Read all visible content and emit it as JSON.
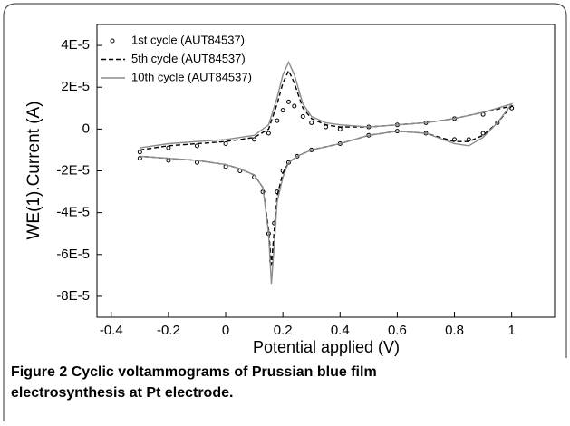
{
  "chart_data": {
    "type": "line",
    "x_label": "Potential applied (V)",
    "y_label": "WE(1).Current (A)",
    "x": [
      -0.3,
      -0.2,
      -0.1,
      0,
      0.1,
      0.15,
      0.18,
      0.2,
      0.22,
      0.24,
      0.27,
      0.3,
      0.35,
      0.4,
      0.5,
      0.6,
      0.7,
      0.8,
      0.9,
      1.0,
      0.95,
      0.9,
      0.85,
      0.8,
      0.7,
      0.6,
      0.5,
      0.4,
      0.3,
      0.25,
      0.22,
      0.2,
      0.18,
      0.17,
      0.16,
      0.15,
      0.13,
      0.1,
      0.05,
      0,
      -0.1,
      -0.2,
      -0.3
    ],
    "series": [
      {
        "name": "1st cycle (AUT84537)",
        "color": "#000000",
        "marker": "circle",
        "values": [
          -1.1e-05,
          -9e-06,
          -8e-06,
          -7e-06,
          -5e-06,
          -2e-06,
          4e-06,
          9e-06,
          1.3e-05,
          1.1e-05,
          6e-06,
          3e-06,
          1e-06,
          0.0,
          1e-06,
          2e-06,
          3e-06,
          5e-06,
          7e-06,
          1e-05,
          3e-06,
          -2e-06,
          -5e-06,
          -5e-06,
          -2e-06,
          -1e-06,
          -3e-06,
          -7e-06,
          -1e-05,
          -1.3e-05,
          -1.6e-05,
          -2e-05,
          -3e-05,
          -4.5e-05,
          -6.3e-05,
          -5e-05,
          -3e-05,
          -2.3e-05,
          -2e-05,
          -1.8e-05,
          -1.6e-05,
          -1.5e-05,
          -1.4e-05
        ]
      },
      {
        "name": "5th cycle (AUT84537)",
        "color": "#000000",
        "dash": true,
        "values": [
          -1e-05,
          -8e-06,
          -7e-06,
          -6e-06,
          -4e-06,
          0.0,
          1.2e-05,
          2.2e-05,
          2.8e-05,
          2.2e-05,
          1e-05,
          5e-06,
          2e-06,
          1e-06,
          1e-06,
          2e-06,
          3e-06,
          5e-06,
          8e-06,
          1.1e-05,
          3e-06,
          -3e-06,
          -6e-06,
          -6e-06,
          -2e-06,
          -1e-06,
          -3e-06,
          -7e-06,
          -1e-05,
          -1.3e-05,
          -1.6e-05,
          -2.1e-05,
          -3.2e-05,
          -4.8e-05,
          -6.5e-05,
          -4.8e-05,
          -2.8e-05,
          -2.2e-05,
          -1.9e-05,
          -1.7e-05,
          -1.5e-05,
          -1.4e-05,
          -1.3e-05
        ]
      },
      {
        "name": "10th cycle (AUT84537)",
        "color": "#8c8c8c",
        "values": [
          -9e-06,
          -7e-06,
          -6e-06,
          -5e-06,
          -3e-06,
          2e-06,
          1.5e-05,
          2.6e-05,
          3.2e-05,
          2.6e-05,
          1.2e-05,
          6e-06,
          3e-06,
          2e-06,
          1e-06,
          2e-06,
          3e-06,
          5e-06,
          8e-06,
          1.2e-05,
          3e-06,
          -4e-06,
          -8e-06,
          -7e-06,
          -2e-06,
          -1e-06,
          -3e-06,
          -7e-06,
          -1e-05,
          -1.3e-05,
          -1.6e-05,
          -2.3e-05,
          -3.5e-05,
          -5.5e-05,
          -7.4e-05,
          -5e-05,
          -2.8e-05,
          -2.2e-05,
          -1.9e-05,
          -1.7e-05,
          -1.5e-05,
          -1.4e-05,
          -1.3e-05
        ]
      }
    ],
    "xlim": [
      -0.45,
      1.15
    ],
    "xticks": [
      -0.4,
      -0.2,
      0,
      0.2,
      0.4,
      0.6,
      0.8,
      1
    ],
    "ylim": [
      -9e-05,
      5e-05
    ],
    "yticks": [
      {
        "value": 4e-05,
        "label": "4E-5"
      },
      {
        "value": 2e-05,
        "label": "2E-5"
      },
      0,
      {
        "value": -2e-05,
        "label": "-2E-5"
      },
      {
        "value": -4e-05,
        "label": "-4E-5"
      },
      {
        "value": -6e-05,
        "label": "-6E-5"
      },
      {
        "value": -8e-05,
        "label": "-8E-5"
      }
    ],
    "legend": "top-left"
  },
  "caption": {
    "label": "Figure 2",
    "text": "Cyclic voltammograms of Prussian blue film",
    "text2": "electrosynthesis at Pt electrode."
  }
}
